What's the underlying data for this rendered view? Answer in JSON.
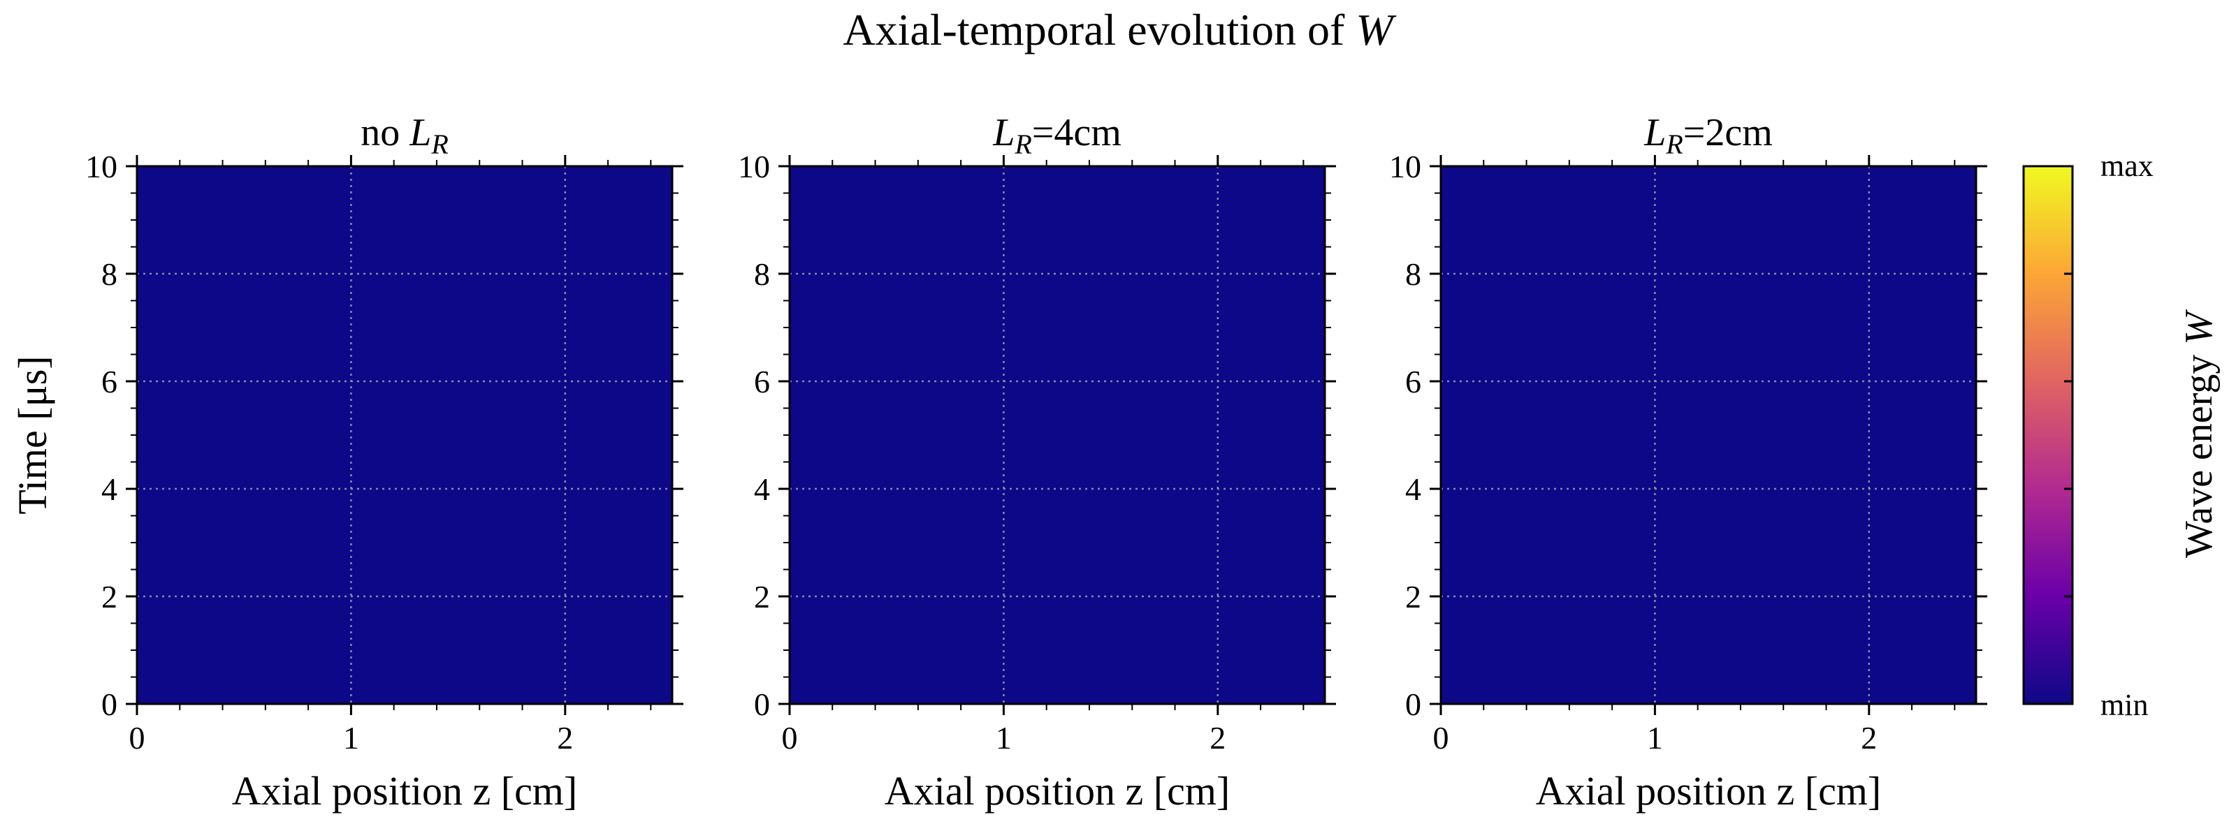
{
  "figure": {
    "title_prefix": "Axial-temporal evolution of ",
    "title_symbol": "W"
  },
  "chart_data": [
    {
      "type": "heatmap",
      "title_parts": [
        [
          "no ",
          "normal"
        ],
        [
          "L",
          "italic"
        ],
        [
          "R",
          "italic-sub"
        ]
      ],
      "xlabel": "Axial position z [cm]",
      "ylabel": "Time [μs]",
      "xlim": [
        0,
        2.5
      ],
      "ylim": [
        0,
        10
      ],
      "x_ticks": [
        0,
        1,
        2
      ],
      "y_ticks": [
        0,
        2,
        4,
        6,
        8,
        10
      ],
      "grid": true,
      "values": [
        [
          0
        ]
      ]
    },
    {
      "type": "heatmap",
      "title_parts": [
        [
          "L",
          "italic"
        ],
        [
          "R",
          "italic-sub"
        ],
        [
          "=4cm",
          "normal"
        ]
      ],
      "xlabel": "Axial position z [cm]",
      "xlim": [
        0,
        2.5
      ],
      "ylim": [
        0,
        10
      ],
      "x_ticks": [
        0,
        1,
        2
      ],
      "y_ticks": [
        0,
        2,
        4,
        6,
        8,
        10
      ],
      "grid": true,
      "values": [
        [
          0
        ]
      ]
    },
    {
      "type": "heatmap",
      "title_parts": [
        [
          "L",
          "italic"
        ],
        [
          "R",
          "italic-sub"
        ],
        [
          "=2cm",
          "normal"
        ]
      ],
      "xlabel": "Axial position z [cm]",
      "xlim": [
        0,
        2.5
      ],
      "ylim": [
        0,
        10
      ],
      "x_ticks": [
        0,
        1,
        2
      ],
      "y_ticks": [
        0,
        2,
        4,
        6,
        8,
        10
      ],
      "grid": true,
      "values": [
        [
          0
        ]
      ]
    }
  ],
  "colorbar": {
    "label_prefix": "Wave energy ",
    "label_symbol": "W",
    "max_label": "max",
    "min_label": "min",
    "colormap": "plasma",
    "colors": [
      "#0d0887",
      "#6a00a8",
      "#b12a90",
      "#e16462",
      "#fca636",
      "#f0f921"
    ]
  }
}
